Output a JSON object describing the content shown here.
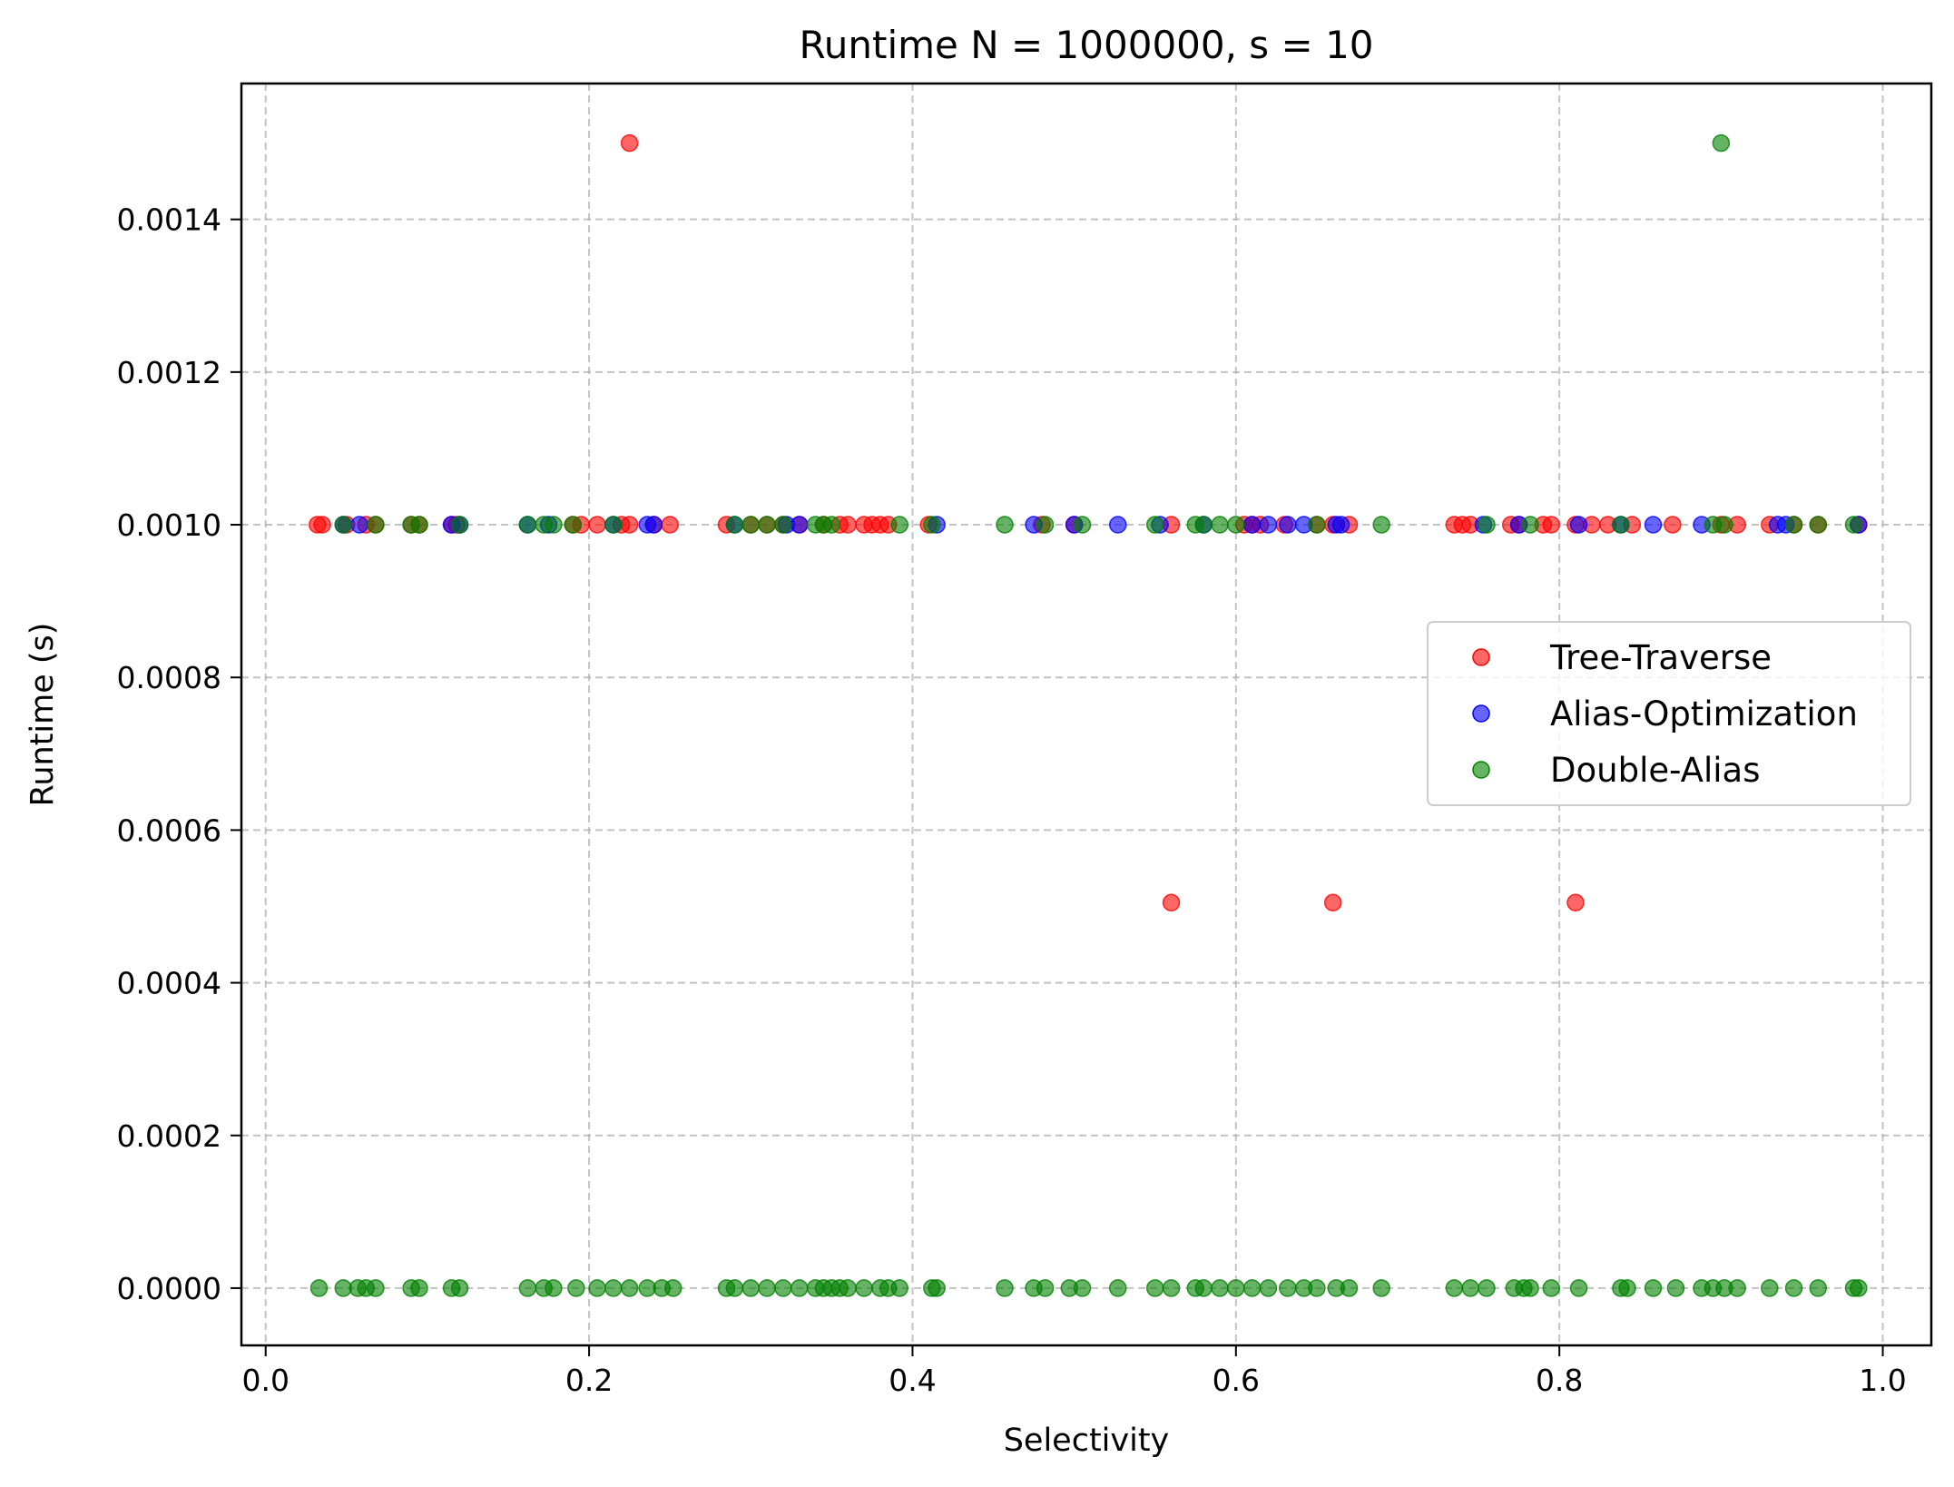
{
  "chart_data": {
    "type": "scatter",
    "title": "Runtime N = 1000000, s = 10",
    "xlabel": "Selectivity",
    "ylabel": "Runtime (s)",
    "xlim": [
      -0.015,
      1.03
    ],
    "ylim": [
      -7.5e-05,
      0.001578
    ],
    "xticks": [
      0.0,
      0.2,
      0.4,
      0.6,
      0.8,
      1.0
    ],
    "xtick_labels": [
      "0.0",
      "0.2",
      "0.4",
      "0.6",
      "0.8",
      "1.0"
    ],
    "yticks": [
      0.0,
      0.0002,
      0.0004,
      0.0006,
      0.0008,
      0.001,
      0.0012,
      0.0014
    ],
    "ytick_labels": [
      "0.0000",
      "0.0002",
      "0.0004",
      "0.0006",
      "0.0008",
      "0.0010",
      "0.0012",
      "0.0014"
    ],
    "grid": true,
    "legend_position": "center-right",
    "series": [
      {
        "name": "Tree-Traverse",
        "color": "#ff0000",
        "x": [
          0.032,
          0.035,
          0.05,
          0.062,
          0.068,
          0.09,
          0.095,
          0.115,
          0.118,
          0.19,
          0.195,
          0.205,
          0.22,
          0.225,
          0.24,
          0.25,
          0.285,
          0.3,
          0.31,
          0.32,
          0.33,
          0.345,
          0.355,
          0.36,
          0.37,
          0.375,
          0.38,
          0.385,
          0.41,
          0.48,
          0.5,
          0.56,
          0.605,
          0.61,
          0.615,
          0.63,
          0.65,
          0.66,
          0.67,
          0.735,
          0.74,
          0.745,
          0.77,
          0.775,
          0.79,
          0.795,
          0.81,
          0.82,
          0.83,
          0.845,
          0.87,
          0.9,
          0.91,
          0.93,
          0.945,
          0.96,
          0.985,
          0.225,
          0.56,
          0.66,
          0.81
        ],
        "y": [
          0.001,
          0.001,
          0.001,
          0.001,
          0.001,
          0.001,
          0.001,
          0.001,
          0.001,
          0.001,
          0.001,
          0.001,
          0.001,
          0.001,
          0.001,
          0.001,
          0.001,
          0.001,
          0.001,
          0.001,
          0.001,
          0.001,
          0.001,
          0.001,
          0.001,
          0.001,
          0.001,
          0.001,
          0.001,
          0.001,
          0.001,
          0.001,
          0.001,
          0.001,
          0.001,
          0.001,
          0.001,
          0.001,
          0.001,
          0.001,
          0.001,
          0.001,
          0.001,
          0.001,
          0.001,
          0.001,
          0.001,
          0.001,
          0.001,
          0.001,
          0.001,
          0.001,
          0.001,
          0.001,
          0.001,
          0.001,
          0.001,
          0.0015,
          0.000505,
          0.000505,
          0.000505
        ]
      },
      {
        "name": "Alias-Optimization",
        "color": "#0000ff",
        "x": [
          0.048,
          0.058,
          0.115,
          0.12,
          0.162,
          0.175,
          0.215,
          0.236,
          0.24,
          0.29,
          0.322,
          0.33,
          0.415,
          0.475,
          0.5,
          0.527,
          0.553,
          0.58,
          0.61,
          0.62,
          0.632,
          0.642,
          0.662,
          0.665,
          0.753,
          0.775,
          0.812,
          0.838,
          0.858,
          0.888,
          0.935,
          0.94,
          0.985
        ],
        "y": [
          0.001,
          0.001,
          0.001,
          0.001,
          0.001,
          0.001,
          0.001,
          0.001,
          0.001,
          0.001,
          0.001,
          0.001,
          0.001,
          0.001,
          0.001,
          0.001,
          0.001,
          0.001,
          0.001,
          0.001,
          0.001,
          0.001,
          0.001,
          0.001,
          0.001,
          0.001,
          0.001,
          0.001,
          0.001,
          0.001,
          0.001,
          0.001,
          0.001
        ]
      },
      {
        "name": "Double-Alias",
        "color": "#008000",
        "x": [
          0.033,
          0.048,
          0.057,
          0.062,
          0.068,
          0.09,
          0.095,
          0.115,
          0.12,
          0.162,
          0.172,
          0.178,
          0.192,
          0.205,
          0.215,
          0.225,
          0.236,
          0.245,
          0.252,
          0.285,
          0.29,
          0.3,
          0.31,
          0.32,
          0.33,
          0.34,
          0.345,
          0.35,
          0.355,
          0.36,
          0.37,
          0.38,
          0.385,
          0.392,
          0.412,
          0.415,
          0.457,
          0.475,
          0.482,
          0.497,
          0.505,
          0.527,
          0.55,
          0.56,
          0.575,
          0.58,
          0.59,
          0.6,
          0.61,
          0.62,
          0.632,
          0.642,
          0.65,
          0.662,
          0.67,
          0.69,
          0.735,
          0.745,
          0.755,
          0.772,
          0.778,
          0.782,
          0.795,
          0.812,
          0.838,
          0.842,
          0.858,
          0.872,
          0.888,
          0.895,
          0.902,
          0.91,
          0.93,
          0.945,
          0.96,
          0.982,
          0.985,
          0.9
        ],
        "y": [
          0.0,
          0.0,
          0.0,
          0.0,
          0.0,
          0.0,
          0.0,
          0.0,
          0.0,
          0.0,
          0.0,
          0.0,
          0.0,
          0.0,
          0.0,
          0.0,
          0.0,
          0.0,
          0.0,
          0.0,
          0.0,
          0.0,
          0.0,
          0.0,
          0.0,
          0.0,
          0.0,
          0.0,
          0.0,
          0.0,
          0.0,
          0.0,
          0.0,
          0.0,
          0.0,
          0.0,
          0.0,
          0.0,
          0.0,
          0.0,
          0.0,
          0.0,
          0.0,
          0.0,
          0.0,
          0.0,
          0.0,
          0.0,
          0.0,
          0.0,
          0.0,
          0.0,
          0.0,
          0.0,
          0.0,
          0.0,
          0.0,
          0.0,
          0.0,
          0.0,
          0.0,
          0.0,
          0.0,
          0.0,
          0.0,
          0.0,
          0.0,
          0.0,
          0.0,
          0.0,
          0.0,
          0.0,
          0.0,
          0.0,
          0.0,
          0.0,
          0.0,
          0.0015
        ]
      },
      {
        "name": "Double-Alias",
        "color": "#008000",
        "x": [
          0.048,
          0.068,
          0.09,
          0.095,
          0.12,
          0.162,
          0.172,
          0.178,
          0.19,
          0.215,
          0.29,
          0.3,
          0.31,
          0.32,
          0.34,
          0.345,
          0.35,
          0.392,
          0.412,
          0.457,
          0.482,
          0.505,
          0.55,
          0.575,
          0.58,
          0.59,
          0.6,
          0.65,
          0.69,
          0.755,
          0.782,
          0.838,
          0.895,
          0.902,
          0.945,
          0.96,
          0.982
        ],
        "y": [
          0.001,
          0.001,
          0.001,
          0.001,
          0.001,
          0.001,
          0.001,
          0.001,
          0.001,
          0.001,
          0.001,
          0.001,
          0.001,
          0.001,
          0.001,
          0.001,
          0.001,
          0.001,
          0.001,
          0.001,
          0.001,
          0.001,
          0.001,
          0.001,
          0.001,
          0.001,
          0.001,
          0.001,
          0.001,
          0.001,
          0.001,
          0.001,
          0.001,
          0.001,
          0.001,
          0.001,
          0.001
        ]
      }
    ]
  }
}
